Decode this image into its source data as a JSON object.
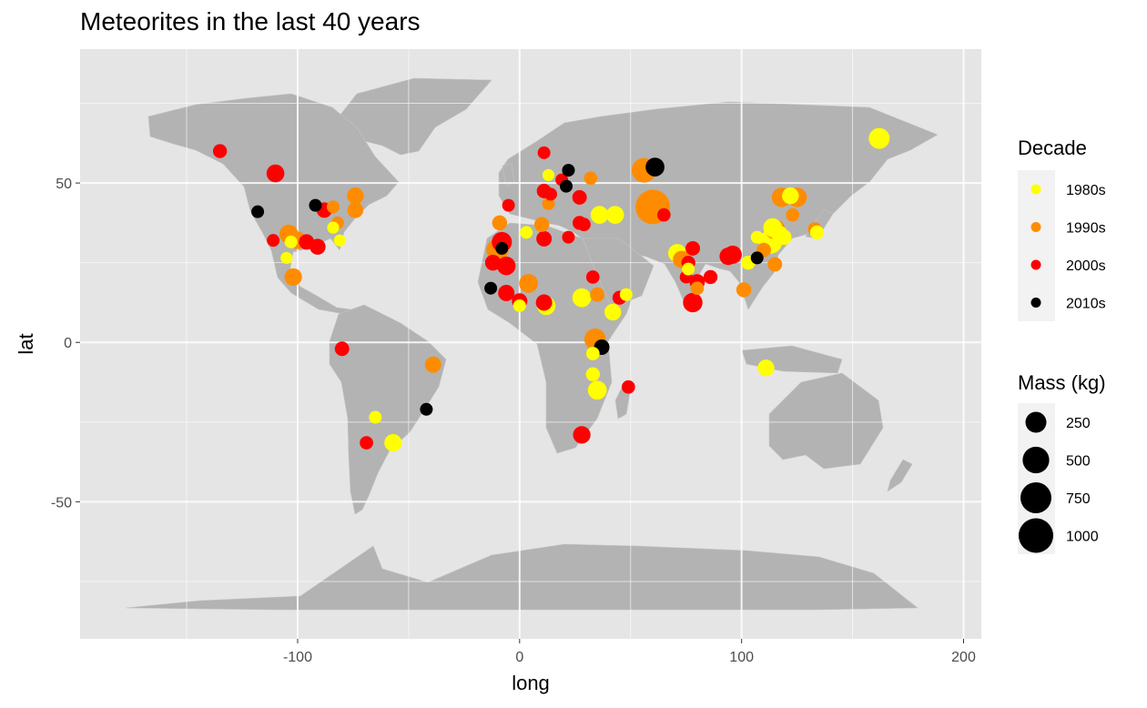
{
  "chart_data": {
    "type": "scatter",
    "title": "Meteorites in the last 40 years",
    "xlabel": "long",
    "ylabel": "lat",
    "xlim": [
      -198,
      208
    ],
    "ylim": [
      -93,
      92
    ],
    "x_ticks": [
      -100,
      0,
      100,
      200
    ],
    "y_ticks": [
      -50,
      0,
      50
    ],
    "x_minor": [
      -150,
      -50,
      50,
      150
    ],
    "y_minor": [
      -75,
      -25,
      25,
      75
    ],
    "background": "land map of the world",
    "grid": true,
    "legend_position": "right",
    "colors": {
      "panel": "#e5e5e5",
      "land": "#b3b3b3",
      "grid": "#ffffff",
      "1980s": "#ffff00",
      "1990s": "#ff8c00",
      "2000s": "#ff0000",
      "2010s": "#000000"
    },
    "legend_color": {
      "title": "Decade",
      "entries": [
        "1980s",
        "1990s",
        "2000s",
        "2010s"
      ]
    },
    "legend_size": {
      "title": "Mass (kg)",
      "entries": [
        250,
        500,
        750,
        1000
      ]
    },
    "points": [
      {
        "long": -135,
        "lat": 60,
        "mass": 60,
        "decade": "2000s"
      },
      {
        "long": -110,
        "lat": 53,
        "mass": 150,
        "decade": "2000s"
      },
      {
        "long": -118,
        "lat": 41,
        "mass": 40,
        "decade": "2010s"
      },
      {
        "long": -92,
        "lat": 43,
        "mass": 40,
        "decade": "2010s"
      },
      {
        "long": -88,
        "lat": 41.5,
        "mass": 90,
        "decade": "2000s"
      },
      {
        "long": -84,
        "lat": 42.5,
        "mass": 40,
        "decade": "1990s"
      },
      {
        "long": -74,
        "lat": 46,
        "mass": 120,
        "decade": "1990s"
      },
      {
        "long": -74,
        "lat": 41.5,
        "mass": 100,
        "decade": "1990s"
      },
      {
        "long": -82,
        "lat": 37.5,
        "mass": 40,
        "decade": "1990s"
      },
      {
        "long": -84,
        "lat": 36,
        "mass": 30,
        "decade": "1980s"
      },
      {
        "long": -81,
        "lat": 32,
        "mass": 30,
        "decade": "1980s"
      },
      {
        "long": -104,
        "lat": 34,
        "mass": 180,
        "decade": "1990s"
      },
      {
        "long": -100,
        "lat": 32,
        "mass": 140,
        "decade": "1990s"
      },
      {
        "long": -96,
        "lat": 31.5,
        "mass": 90,
        "decade": "2000s"
      },
      {
        "long": -91,
        "lat": 30,
        "mass": 100,
        "decade": "2000s"
      },
      {
        "long": -111,
        "lat": 32,
        "mass": 40,
        "decade": "2000s"
      },
      {
        "long": -105,
        "lat": 26.5,
        "mass": 30,
        "decade": "1980s"
      },
      {
        "long": -102,
        "lat": 20.5,
        "mass": 140,
        "decade": "1990s"
      },
      {
        "long": -103,
        "lat": 31.5,
        "mass": 40,
        "decade": "1980s"
      },
      {
        "long": -80,
        "lat": -2,
        "mass": 70,
        "decade": "2000s"
      },
      {
        "long": -39,
        "lat": -7,
        "mass": 110,
        "decade": "1990s"
      },
      {
        "long": -42,
        "lat": -21,
        "mass": 40,
        "decade": "2010s"
      },
      {
        "long": -65,
        "lat": -23.5,
        "mass": 40,
        "decade": "1980s"
      },
      {
        "long": -57,
        "lat": -31.5,
        "mass": 140,
        "decade": "1980s"
      },
      {
        "long": -69,
        "lat": -31.5,
        "mass": 50,
        "decade": "2000s"
      },
      {
        "long": -10,
        "lat": 29,
        "mass": 300,
        "decade": "1990s"
      },
      {
        "long": -12,
        "lat": 25,
        "mass": 100,
        "decade": "2000s"
      },
      {
        "long": -8,
        "lat": 31.5,
        "mass": 220,
        "decade": "2000s"
      },
      {
        "long": -6,
        "lat": 24,
        "mass": 170,
        "decade": "2000s"
      },
      {
        "long": -8,
        "lat": 29.5,
        "mass": 40,
        "decade": "2010s"
      },
      {
        "long": -13,
        "lat": 17,
        "mass": 40,
        "decade": "2010s"
      },
      {
        "long": -6,
        "lat": 15.5,
        "mass": 110,
        "decade": "2000s"
      },
      {
        "long": 0,
        "lat": 13,
        "mass": 90,
        "decade": "2000s"
      },
      {
        "long": 0,
        "lat": 11.5,
        "mass": 40,
        "decade": "1980s"
      },
      {
        "long": 4,
        "lat": 18.5,
        "mass": 180,
        "decade": "1990s"
      },
      {
        "long": 3,
        "lat": 34.5,
        "mass": 40,
        "decade": "1980s"
      },
      {
        "long": -9,
        "lat": 37.5,
        "mass": 80,
        "decade": "1990s"
      },
      {
        "long": -5,
        "lat": 43,
        "mass": 40,
        "decade": "2000s"
      },
      {
        "long": 10,
        "lat": 37,
        "mass": 80,
        "decade": "1990s"
      },
      {
        "long": 11,
        "lat": 32.5,
        "mass": 90,
        "decade": "2000s"
      },
      {
        "long": 11,
        "lat": 12.5,
        "mass": 110,
        "decade": "2000s"
      },
      {
        "long": 12,
        "lat": 11.5,
        "mass": 170,
        "decade": "1980s"
      },
      {
        "long": 28,
        "lat": 14,
        "mass": 180,
        "decade": "1980s"
      },
      {
        "long": 33,
        "lat": 20.5,
        "mass": 50,
        "decade": "2000s"
      },
      {
        "long": 35,
        "lat": 15,
        "mass": 70,
        "decade": "1990s"
      },
      {
        "long": 13,
        "lat": 43.5,
        "mass": 40,
        "decade": "1990s"
      },
      {
        "long": 14,
        "lat": 46.5,
        "mass": 40,
        "decade": "2000s"
      },
      {
        "long": 11,
        "lat": 47.5,
        "mass": 70,
        "decade": "2000s"
      },
      {
        "long": 11,
        "lat": 59.5,
        "mass": 40,
        "decade": "2000s"
      },
      {
        "long": 13,
        "lat": 52.5,
        "mass": 30,
        "decade": "1980s"
      },
      {
        "long": 19,
        "lat": 51,
        "mass": 40,
        "decade": "2000s"
      },
      {
        "long": 22,
        "lat": 54,
        "mass": 40,
        "decade": "2010s"
      },
      {
        "long": 21,
        "lat": 49,
        "mass": 40,
        "decade": "2010s"
      },
      {
        "long": 27,
        "lat": 45.5,
        "mass": 70,
        "decade": "2000s"
      },
      {
        "long": 32,
        "lat": 51.5,
        "mass": 50,
        "decade": "1990s"
      },
      {
        "long": 27,
        "lat": 37.5,
        "mass": 60,
        "decade": "2000s"
      },
      {
        "long": 29,
        "lat": 37,
        "mass": 50,
        "decade": "2000s"
      },
      {
        "long": 36,
        "lat": 40,
        "mass": 150,
        "decade": "1980s"
      },
      {
        "long": 43,
        "lat": 40,
        "mass": 150,
        "decade": "1980s"
      },
      {
        "long": 22,
        "lat": 33,
        "mass": 40,
        "decade": "2000s"
      },
      {
        "long": 45,
        "lat": 14,
        "mass": 60,
        "decade": "2000s"
      },
      {
        "long": 48,
        "lat": 15,
        "mass": 40,
        "decade": "1980s"
      },
      {
        "long": 42,
        "lat": 9.5,
        "mass": 120,
        "decade": "1980s"
      },
      {
        "long": 34,
        "lat": 1,
        "mass": 270,
        "decade": "1990s"
      },
      {
        "long": 37,
        "lat": -1.5,
        "mass": 90,
        "decade": "2010s"
      },
      {
        "long": 33,
        "lat": -3.5,
        "mass": 50,
        "decade": "1980s"
      },
      {
        "long": 33,
        "lat": -10,
        "mass": 60,
        "decade": "1980s"
      },
      {
        "long": 35,
        "lat": -15,
        "mass": 180,
        "decade": "1980s"
      },
      {
        "long": 49,
        "lat": -14,
        "mass": 50,
        "decade": "2000s"
      },
      {
        "long": 28,
        "lat": -29,
        "mass": 140,
        "decade": "2000s"
      },
      {
        "long": 56,
        "lat": 54,
        "mass": 400,
        "decade": "1990s"
      },
      {
        "long": 61,
        "lat": 55,
        "mass": 180,
        "decade": "2010s"
      },
      {
        "long": 60,
        "lat": 42.5,
        "mass": 1000,
        "decade": "1990s"
      },
      {
        "long": 65,
        "lat": 40,
        "mass": 50,
        "decade": "2000s"
      },
      {
        "long": 71,
        "lat": 28,
        "mass": 160,
        "decade": "1980s"
      },
      {
        "long": 73,
        "lat": 26,
        "mass": 140,
        "decade": "1990s"
      },
      {
        "long": 76,
        "lat": 25,
        "mass": 60,
        "decade": "2000s"
      },
      {
        "long": 78,
        "lat": 29.5,
        "mass": 70,
        "decade": "2000s"
      },
      {
        "long": 75,
        "lat": 20.5,
        "mass": 40,
        "decade": "2000s"
      },
      {
        "long": 76,
        "lat": 23,
        "mass": 40,
        "decade": "1980s"
      },
      {
        "long": 80,
        "lat": 19,
        "mass": 90,
        "decade": "2000s"
      },
      {
        "long": 80,
        "lat": 17,
        "mass": 50,
        "decade": "1990s"
      },
      {
        "long": 86,
        "lat": 20.5,
        "mass": 60,
        "decade": "2000s"
      },
      {
        "long": 78,
        "lat": 12.5,
        "mass": 200,
        "decade": "2000s"
      },
      {
        "long": 94,
        "lat": 27,
        "mass": 140,
        "decade": "2000s"
      },
      {
        "long": 96,
        "lat": 27.5,
        "mass": 160,
        "decade": "2000s"
      },
      {
        "long": 101,
        "lat": 16.5,
        "mass": 80,
        "decade": "1990s"
      },
      {
        "long": 103,
        "lat": 25,
        "mass": 60,
        "decade": "1980s"
      },
      {
        "long": 107,
        "lat": 26.5,
        "mass": 40,
        "decade": "2010s"
      },
      {
        "long": 107,
        "lat": 33,
        "mass": 40,
        "decade": "1980s"
      },
      {
        "long": 110,
        "lat": 29,
        "mass": 70,
        "decade": "1990s"
      },
      {
        "long": 113,
        "lat": 31.5,
        "mass": 350,
        "decade": "1980s"
      },
      {
        "long": 114,
        "lat": 36,
        "mass": 180,
        "decade": "1980s"
      },
      {
        "long": 115,
        "lat": 35.5,
        "mass": 220,
        "decade": "1990s"
      },
      {
        "long": 117,
        "lat": 34,
        "mass": 120,
        "decade": "1980s"
      },
      {
        "long": 119,
        "lat": 33,
        "mass": 90,
        "decade": "1980s"
      },
      {
        "long": 115,
        "lat": 24.5,
        "mass": 70,
        "decade": "1990s"
      },
      {
        "long": 118,
        "lat": 45.5,
        "mass": 200,
        "decade": "1990s"
      },
      {
        "long": 122,
        "lat": 46,
        "mass": 120,
        "decade": "1980s"
      },
      {
        "long": 125,
        "lat": 45.5,
        "mass": 200,
        "decade": "1990s"
      },
      {
        "long": 123,
        "lat": 40,
        "mass": 50,
        "decade": "1990s"
      },
      {
        "long": 133,
        "lat": 35.5,
        "mass": 60,
        "decade": "1990s"
      },
      {
        "long": 134,
        "lat": 34.5,
        "mass": 60,
        "decade": "1980s"
      },
      {
        "long": 111,
        "lat": -8,
        "mass": 120,
        "decade": "1980s"
      },
      {
        "long": 162,
        "lat": 64,
        "mass": 250,
        "decade": "1980s"
      }
    ]
  }
}
